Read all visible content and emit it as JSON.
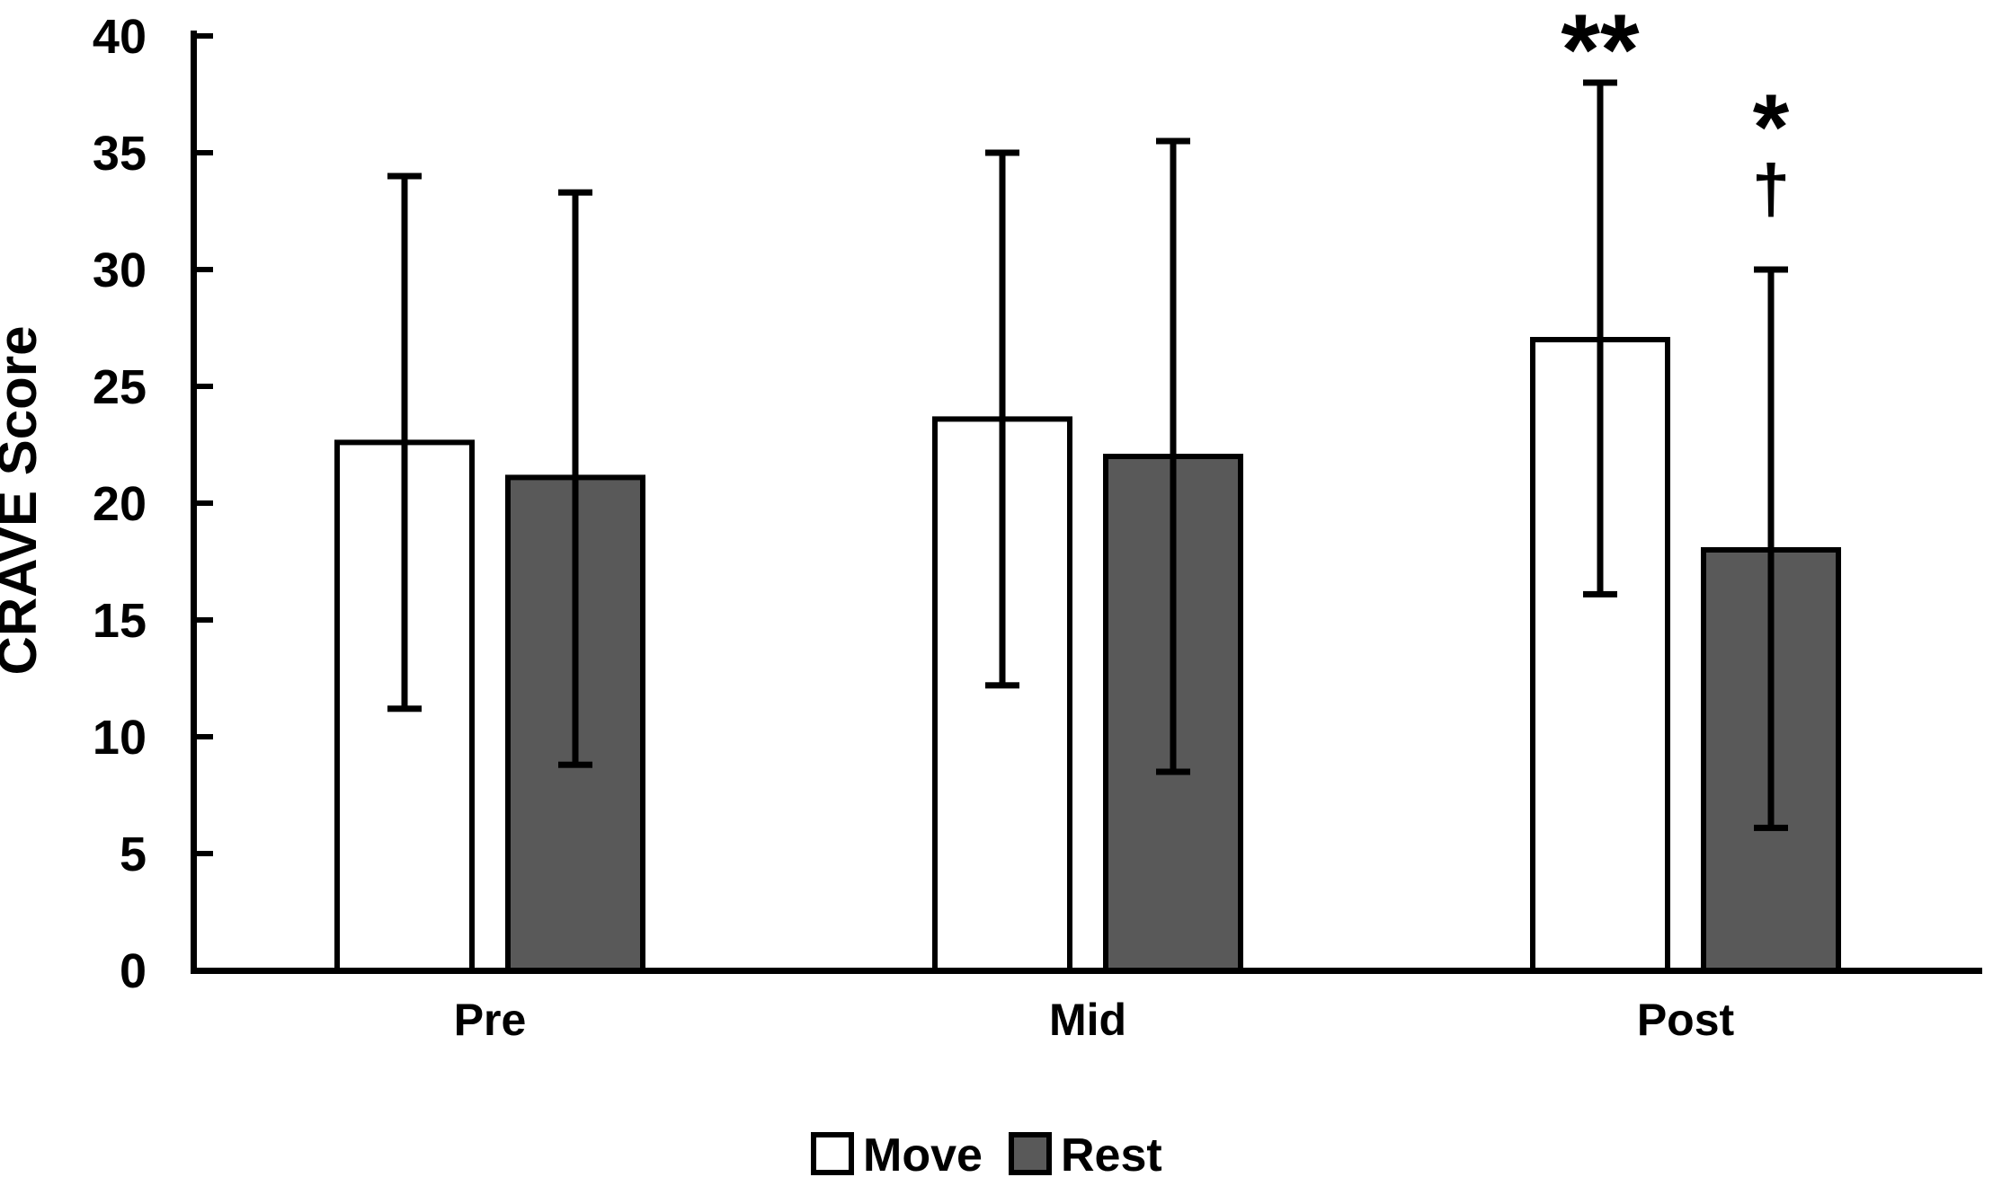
{
  "chart_data": {
    "type": "bar",
    "title": "",
    "ylabel": "CRAVE Score",
    "xlabel": "",
    "ylim": [
      0,
      40
    ],
    "ytick_step": 5,
    "grid": false,
    "legend_position": "bottom",
    "categories": [
      "Pre",
      "Mid",
      "Post"
    ],
    "series": [
      {
        "name": "Move",
        "fill": "#ffffff",
        "stroke": "#000000",
        "values": [
          22.6,
          23.6,
          27.0
        ],
        "whisker_high": [
          34.0,
          35.0,
          38.0
        ],
        "whisker_low": [
          11.2,
          12.2,
          16.1
        ]
      },
      {
        "name": "Rest",
        "fill": "#595959",
        "stroke": "#000000",
        "values": [
          21.1,
          22.0,
          18.0
        ],
        "whisker_high": [
          33.3,
          35.5,
          30.0
        ],
        "whisker_low": [
          8.8,
          8.5,
          6.1
        ]
      }
    ],
    "annotations": [
      {
        "text": "**",
        "category": "Post",
        "series": "Move",
        "y_value": 40.1
      },
      {
        "text": "*",
        "category": "Post",
        "series": "Rest",
        "y_value": 36.7
      },
      {
        "text": "†",
        "category": "Post",
        "series": "Rest",
        "y_value": 33.3
      }
    ],
    "axis_color": "#000000",
    "error_bar_color": "#000000"
  }
}
